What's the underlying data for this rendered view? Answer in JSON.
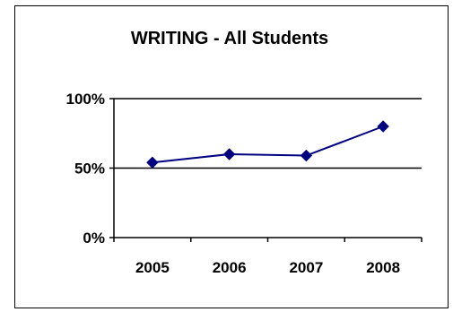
{
  "chart_data": {
    "type": "line",
    "title": "WRITING - All Students",
    "xlabel": "",
    "ylabel": "",
    "categories": [
      "2005",
      "2006",
      "2007",
      "2008"
    ],
    "series": [
      {
        "values": [
          0.54,
          0.6,
          0.59,
          0.8
        ],
        "color": "#000080",
        "marker": "diamond"
      }
    ],
    "ylim": [
      0,
      1
    ],
    "yticks": [
      0,
      0.5,
      1
    ],
    "ytick_labels": [
      "0%",
      "50%",
      "100%"
    ],
    "grid": true,
    "legend": "none"
  }
}
